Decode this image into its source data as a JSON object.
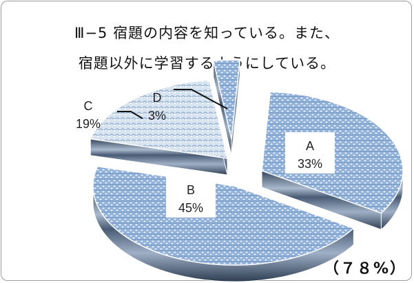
{
  "chart_data": {
    "type": "pie",
    "title_line1": "Ⅲ−5 宿題の内容を知っている。また、",
    "title_line2": "宿題以外に学習するようにしている。",
    "note": "（７８%）",
    "categories": [
      "A",
      "B",
      "C",
      "D"
    ],
    "values": [
      33,
      45,
      19,
      3
    ],
    "value_labels": [
      "33%",
      "45%",
      "19%",
      "3%"
    ],
    "colors": {
      "top": "#8fb0d8",
      "side": "#3e4f66",
      "band": "#b9c8da"
    }
  }
}
